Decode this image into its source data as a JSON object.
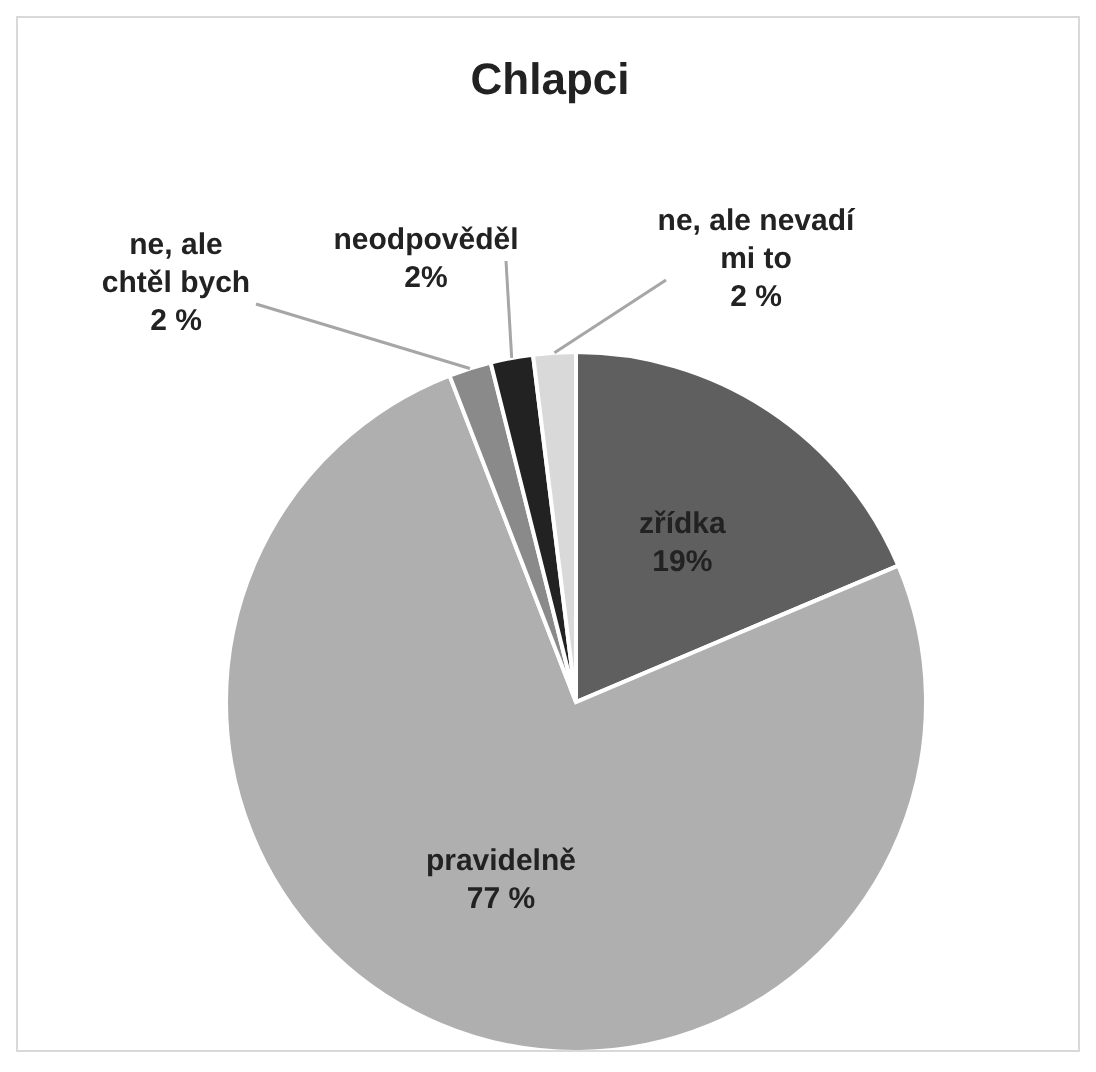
{
  "chart_data": {
    "type": "pie",
    "title": "Chlapci",
    "categories": [
      "zřídka",
      "pravidelně",
      "ne, ale chtěl bych",
      "neodpověděl",
      "ne, ale nevadí mi to"
    ],
    "values": [
      19,
      77,
      2,
      2,
      2
    ],
    "value_labels": [
      "19%",
      "77 %",
      "2 %",
      "2%",
      "2 %"
    ],
    "colors": [
      "#5f5f5f",
      "#afafaf",
      "#8a8a8a",
      "#222222",
      "#d9d9d9"
    ],
    "legend": false
  }
}
